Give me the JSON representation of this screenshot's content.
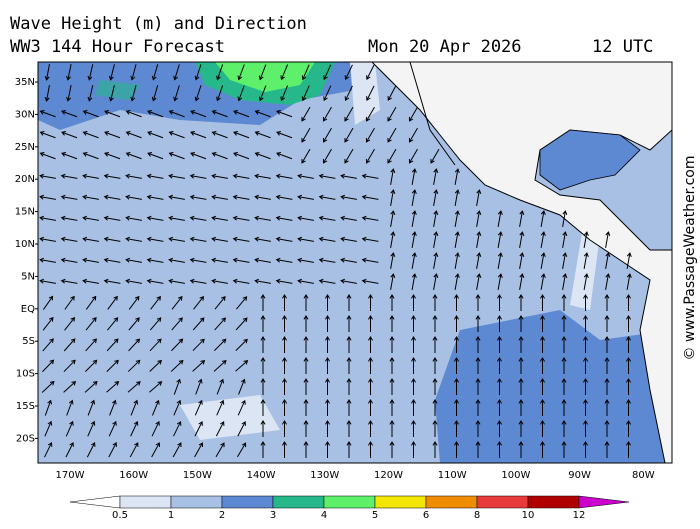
{
  "header": {
    "title": "Wave Height (m) and Direction",
    "subtitle": "WW3 144 Hour Forecast",
    "date": "Mon 20 Apr 2026",
    "time": "12 UTC"
  },
  "axes": {
    "lat_labels": [
      "35N",
      "30N",
      "25N",
      "20N",
      "15N",
      "10N",
      "5N",
      "EQ",
      "5S",
      "10S",
      "15S",
      "20S"
    ],
    "lon_labels": [
      "170W",
      "160W",
      "150W",
      "140W",
      "130W",
      "120W",
      "110W",
      "100W",
      "90W",
      "80W"
    ]
  },
  "colorbar": {
    "ticks": [
      0.5,
      1,
      2,
      3,
      4,
      5,
      6,
      8,
      10,
      12
    ],
    "colors": [
      "#ffffff",
      "#dbe5f4",
      "#a8c0e4",
      "#5d88d2",
      "#26b88b",
      "#5ef06a",
      "#f2e600",
      "#f08c00",
      "#e83a3a",
      "#b00000",
      "#cc00cc"
    ]
  },
  "watermark": "© www.PassageWeather.com"
}
